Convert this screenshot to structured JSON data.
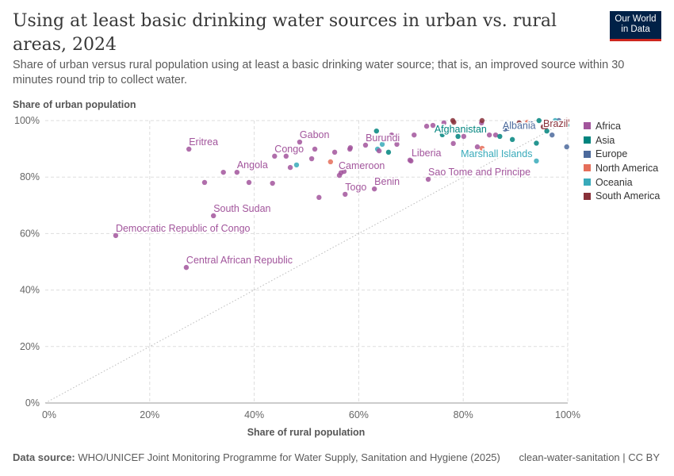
{
  "header": {
    "title": "Using at least basic drinking water sources in urban vs. rural areas, 2024",
    "subtitle": "Share of urban versus rural population using at least a basic drinking water source; that is, an improved source within 30 minutes round trip to collect water.",
    "logo": "Our World in Data"
  },
  "footer": {
    "source_label": "Data source:",
    "source": "WHO/UNICEF Joint Monitoring Programme for Water Supply, Sanitation and Hygiene (2025)",
    "license": "clean-water-sanitation | CC BY"
  },
  "chart_data": {
    "type": "scatter",
    "title": "Using at least basic drinking water sources in urban vs. rural areas, 2024",
    "xlabel": "Share of rural population",
    "ylabel": "Share of urban population",
    "xlim": [
      0,
      100
    ],
    "ylim": [
      0,
      100
    ],
    "xticks": [
      "0%",
      "20%",
      "40%",
      "60%",
      "80%",
      "100%"
    ],
    "yticks": [
      "0%",
      "20%",
      "40%",
      "60%",
      "80%",
      "100%"
    ],
    "grid": true,
    "legend_position": "right",
    "reference_line": "y = x",
    "colors": {
      "Africa": "#a2559c",
      "Asia": "#00847e",
      "Europe": "#4c6a9c",
      "North America": "#e56e5a",
      "Oceania": "#38aaba",
      "South America": "#883039"
    },
    "legend": [
      "Africa",
      "Asia",
      "Europe",
      "North America",
      "Oceania",
      "South America"
    ],
    "points": [
      {
        "label": "Eritrea",
        "r": "Africa",
        "x": 27.5,
        "y": 89.9
      },
      {
        "label": "Gabon",
        "r": "Africa",
        "x": 48.7,
        "y": 92.4
      },
      {
        "label": "Congo",
        "r": "Africa",
        "x": 43.9,
        "y": 87.4
      },
      {
        "label": "Angola",
        "r": "Africa",
        "x": 36.7,
        "y": 81.7
      },
      {
        "label": "Burundi",
        "r": "Africa",
        "x": 63.9,
        "y": 89.3
      },
      {
        "label": "Cameroon",
        "r": "Africa",
        "x": 56.6,
        "y": 81.5
      },
      {
        "label": "Togo",
        "r": "Africa",
        "x": 57.4,
        "y": 73.9
      },
      {
        "label": "Benin",
        "r": "Africa",
        "x": 63,
        "y": 75.8
      },
      {
        "label": "Liberia",
        "r": "Africa",
        "x": 69.8,
        "y": 86
      },
      {
        "label": "Sao Tome and Principe",
        "r": "Africa",
        "x": 73.3,
        "y": 79.2
      },
      {
        "label": "South Sudan",
        "r": "Africa",
        "x": 32.2,
        "y": 66.3
      },
      {
        "label": "Democratic Republic of Congo",
        "r": "Africa",
        "x": 13.5,
        "y": 59.3
      },
      {
        "label": "Central African Republic",
        "r": "Africa",
        "x": 27,
        "y": 48
      },
      {
        "label": "Afghanistan",
        "r": "Asia",
        "x": 76,
        "y": 95
      },
      {
        "label": "Albania",
        "r": "Europe",
        "x": 88,
        "y": 97
      },
      {
        "label": "Brazil",
        "r": "South America",
        "x": 95.3,
        "y": 97.8
      },
      {
        "label": "Marshall Islands",
        "r": "Oceania",
        "x": 94,
        "y": 85.7
      },
      {
        "r": "Africa",
        "x": 30.5,
        "y": 78.1
      },
      {
        "r": "Africa",
        "x": 34.1,
        "y": 81.7
      },
      {
        "r": "Africa",
        "x": 39,
        "y": 78.1
      },
      {
        "r": "Africa",
        "x": 43.5,
        "y": 77.8
      },
      {
        "r": "Africa",
        "x": 46.9,
        "y": 83.4
      },
      {
        "r": "Africa",
        "x": 46.1,
        "y": 87.4
      },
      {
        "r": "Africa",
        "x": 51.6,
        "y": 89.9
      },
      {
        "r": "Africa",
        "x": 51,
        "y": 86.5
      },
      {
        "r": "Africa",
        "x": 55.4,
        "y": 88.8
      },
      {
        "r": "Africa",
        "x": 52.4,
        "y": 72.8
      },
      {
        "r": "Africa",
        "x": 56.3,
        "y": 80.6
      },
      {
        "r": "Africa",
        "x": 58.4,
        "y": 90.4
      },
      {
        "r": "Africa",
        "x": 61.3,
        "y": 91.3
      },
      {
        "r": "Africa",
        "x": 66.3,
        "y": 94.9
      },
      {
        "r": "Africa",
        "x": 67.3,
        "y": 91.6
      },
      {
        "r": "Africa",
        "x": 70,
        "y": 85.7
      },
      {
        "r": "Africa",
        "x": 70.6,
        "y": 94.9
      },
      {
        "r": "Africa",
        "x": 73,
        "y": 98
      },
      {
        "r": "Africa",
        "x": 74.2,
        "y": 98.3
      },
      {
        "r": "Africa",
        "x": 78.1,
        "y": 91.9
      },
      {
        "r": "Africa",
        "x": 80.1,
        "y": 94.4
      },
      {
        "r": "Africa",
        "x": 82.7,
        "y": 90.7
      },
      {
        "r": "Africa",
        "x": 85,
        "y": 94.9
      },
      {
        "r": "Africa",
        "x": 86.2,
        "y": 94.9
      },
      {
        "r": "Africa",
        "x": 76.3,
        "y": 99.2
      },
      {
        "r": "Africa",
        "x": 83.5,
        "y": 99.2
      },
      {
        "r": "Africa",
        "x": 58.3,
        "y": 89.9
      },
      {
        "r": "Africa",
        "x": 57.2,
        "y": 82
      },
      {
        "r": "Asia",
        "x": 63.4,
        "y": 96.3
      },
      {
        "r": "Asia",
        "x": 65.7,
        "y": 88.8
      },
      {
        "r": "Asia",
        "x": 79,
        "y": 94.4
      },
      {
        "r": "Asia",
        "x": 87,
        "y": 94.4
      },
      {
        "r": "Asia",
        "x": 89.4,
        "y": 93.3
      },
      {
        "r": "Asia",
        "x": 94,
        "y": 92
      },
      {
        "r": "Asia",
        "x": 94.5,
        "y": 100
      },
      {
        "r": "Asia",
        "x": 97.6,
        "y": 99.2
      },
      {
        "r": "Asia",
        "x": 99.8,
        "y": 98.3
      },
      {
        "r": "Asia",
        "x": 96,
        "y": 96.3
      },
      {
        "r": "Europe",
        "x": 99.8,
        "y": 90.7
      },
      {
        "r": "Europe",
        "x": 97,
        "y": 94.9
      },
      {
        "r": "Europe",
        "x": 90.7,
        "y": 97.8
      },
      {
        "r": "Europe",
        "x": 93,
        "y": 98.9
      },
      {
        "r": "Europe",
        "x": 98.3,
        "y": 100
      },
      {
        "r": "Europe",
        "x": 88.5,
        "y": 97.2
      },
      {
        "r": "North America",
        "x": 54.6,
        "y": 85.4
      },
      {
        "r": "North America",
        "x": 83.6,
        "y": 90.2
      },
      {
        "r": "North America",
        "x": 92.3,
        "y": 99.4
      },
      {
        "r": "North America",
        "x": 96,
        "y": 99.7
      },
      {
        "r": "North America",
        "x": 99.8,
        "y": 100
      },
      {
        "r": "Oceania",
        "x": 48.1,
        "y": 84.3
      },
      {
        "r": "Oceania",
        "x": 63.6,
        "y": 89.9
      },
      {
        "r": "Oceania",
        "x": 64.5,
        "y": 91.6
      },
      {
        "r": "Oceania",
        "x": 97.6,
        "y": 100
      },
      {
        "r": "South America",
        "x": 78,
        "y": 100
      },
      {
        "r": "South America",
        "x": 78.2,
        "y": 99.4
      },
      {
        "r": "South America",
        "x": 83.6,
        "y": 100
      },
      {
        "r": "South America",
        "x": 95.8,
        "y": 97.8
      },
      {
        "r": "South America",
        "x": 99.8,
        "y": 100
      },
      {
        "r": "South America",
        "x": 90.7,
        "y": 99.2
      }
    ]
  }
}
